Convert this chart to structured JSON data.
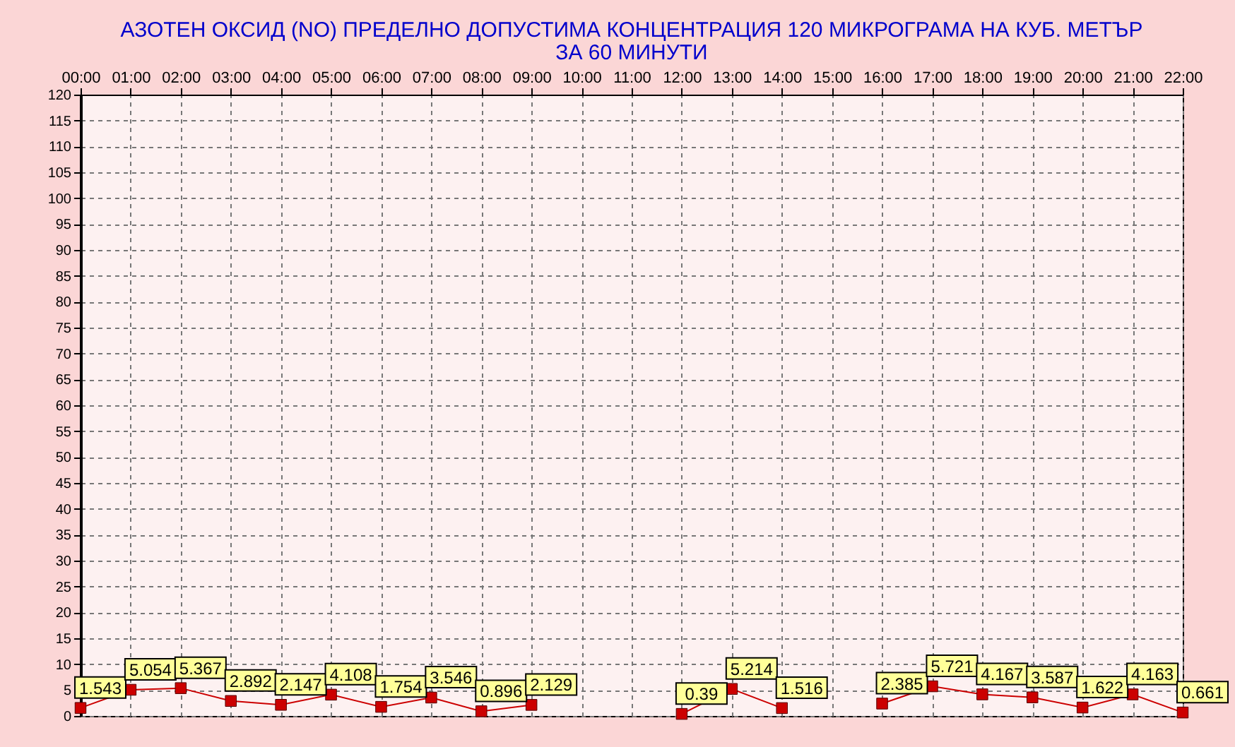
{
  "chart_data": {
    "type": "line",
    "title": "АЗОТЕН ОКСИД   (NO)     ПРЕДЕЛНО ДОПУСТИМА КОНЦЕНТРАЦИЯ 120 МИКРОГРАМА  НА КУБ. МЕТЪР",
    "subtitle": "ЗА 60 МИНУТИ",
    "categories": [
      "00:00",
      "01:00",
      "02:00",
      "03:00",
      "04:00",
      "05:00",
      "06:00",
      "07:00",
      "08:00",
      "09:00",
      "10:00",
      "11:00",
      "12:00",
      "13:00",
      "14:00",
      "15:00",
      "16:00",
      "17:00",
      "18:00",
      "19:00",
      "20:00",
      "21:00",
      "22:00"
    ],
    "series": [
      {
        "color": "#cc0000",
        "values": [
          1.543,
          5.054,
          5.367,
          2.892,
          2.147,
          4.108,
          1.754,
          3.546,
          0.896,
          2.129,
          null,
          null,
          0.39,
          5.214,
          1.516,
          null,
          2.385,
          5.721,
          4.167,
          3.587,
          1.622,
          4.163,
          0.661
        ]
      }
    ],
    "ylim": [
      0,
      120
    ],
    "yticks": [
      0,
      5,
      10,
      15,
      20,
      25,
      30,
      35,
      40,
      45,
      50,
      55,
      60,
      65,
      70,
      75,
      80,
      85,
      90,
      95,
      100,
      105,
      110,
      115,
      120
    ],
    "grid": true,
    "marker": "square",
    "line_style": "solid",
    "data_labels": true,
    "legend": false
  }
}
